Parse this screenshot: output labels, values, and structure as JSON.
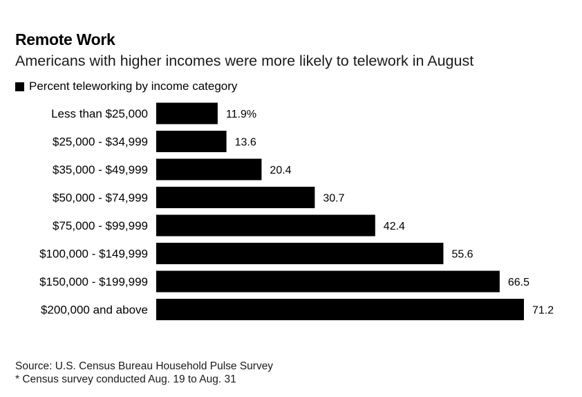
{
  "title": "Remote Work",
  "subtitle": "Americans with higher incomes were more likely to telework in August",
  "footer": {
    "source": "Source: U.S. Census Bureau Household Pulse Survey",
    "note": "* Census survey conducted Aug. 19 to Aug. 31"
  },
  "chart_data": {
    "type": "bar",
    "orientation": "horizontal",
    "title": "Remote Work",
    "subtitle": "Americans with higher incomes were more likely to telework in August",
    "legend": [
      "Percent teleworking by income category"
    ],
    "legend_position": "top-left",
    "grid": false,
    "categories": [
      "Less than $25,000",
      "$25,000 - $34,999",
      "$35,000 - $49,999",
      "$50,000 - $74,999",
      "$75,000 - $99,999",
      "$100,000 - $149,999",
      "$150,000 - $199,999",
      "$200,000 and above"
    ],
    "series": [
      {
        "name": "Percent teleworking by income category",
        "color": "#000000",
        "values": [
          11.9,
          13.6,
          20.4,
          30.7,
          42.4,
          55.6,
          66.5,
          71.2
        ],
        "labels": [
          "11.9%",
          "13.6",
          "20.4",
          "30.7",
          "42.4",
          "55.6",
          "66.5",
          "71.2"
        ]
      }
    ],
    "xlim": [
      0,
      71.2
    ]
  }
}
